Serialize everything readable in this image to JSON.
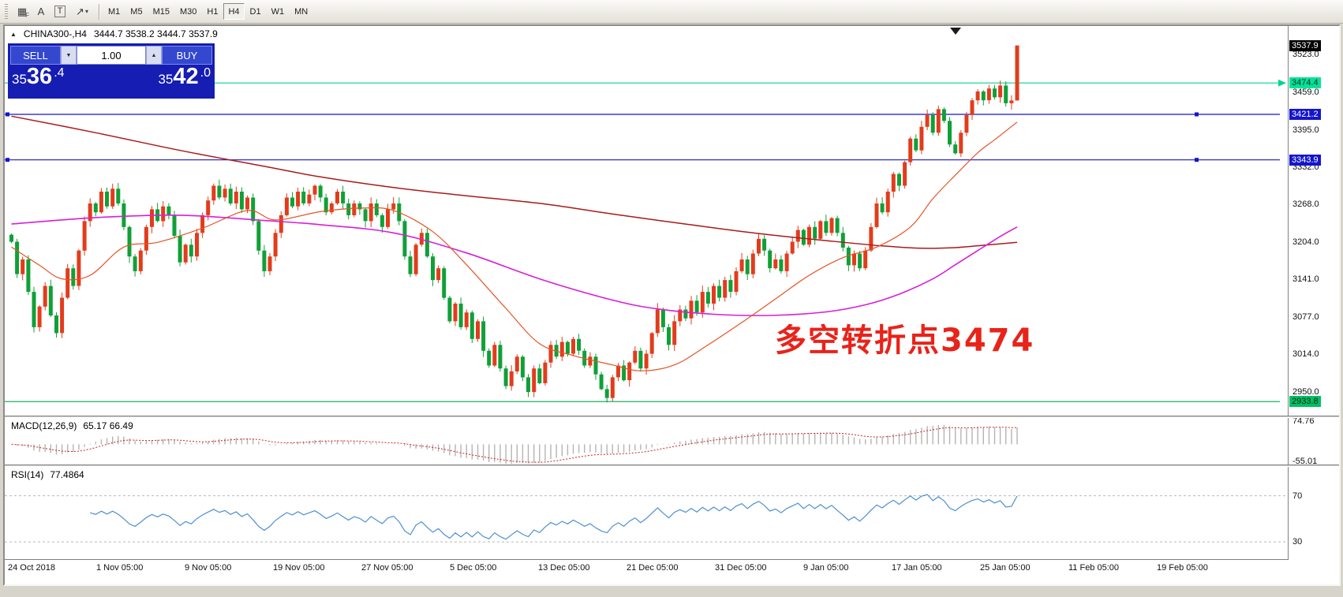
{
  "toolbar": {
    "tool_icons": [
      {
        "name": "grid-icon",
        "glyph": "▦",
        "badge": "F"
      },
      {
        "name": "text-label-icon",
        "glyph": "A"
      },
      {
        "name": "text-tool-icon",
        "glyph": "T"
      },
      {
        "name": "shapes-tool-icon",
        "glyph": "↗"
      }
    ],
    "dropdown_caret": "▾",
    "timeframes": [
      {
        "label": "M1",
        "active": false
      },
      {
        "label": "M5",
        "active": false
      },
      {
        "label": "M15",
        "active": false
      },
      {
        "label": "M30",
        "active": false
      },
      {
        "label": "H1",
        "active": false
      },
      {
        "label": "H4",
        "active": true
      },
      {
        "label": "D1",
        "active": false
      },
      {
        "label": "W1",
        "active": false
      },
      {
        "label": "MN",
        "active": false
      }
    ]
  },
  "chart": {
    "symbol_header": {
      "collapse_icon": "▲",
      "title": "CHINA300-,H4",
      "ohlc": "3444.7 3538.2 3444.7 3537.9"
    },
    "trade_panel": {
      "sell_label": "SELL",
      "buy_label": "BUY",
      "volume": "1.00",
      "sell_price": "3536.4",
      "buy_price": "3542.0",
      "volume_down_icon": "▼",
      "volume_up_icon": "▲"
    },
    "annotation": {
      "text": "多空转折点3474",
      "color": "#e8231a"
    },
    "current_price": {
      "value": 3537.9,
      "label": "3537.9",
      "bg": "#000000",
      "fg": "#ffffff"
    },
    "levels": [
      {
        "value": 3474.4,
        "label": "3474.4",
        "line_color": "#00d68f",
        "badge_bg": "#00e39b",
        "badge_fg": "#00301c",
        "arrow": true,
        "endpoints": false
      },
      {
        "value": 3421.2,
        "label": "3421.2",
        "line_color": "#1515cd",
        "badge_bg": "#1515cd",
        "badge_fg": "#ffffff",
        "arrow": false,
        "endpoints": true
      },
      {
        "value": 3343.9,
        "label": "3343.9",
        "line_color": "#1515cd",
        "badge_bg": "#1515cd",
        "badge_fg": "#ffffff",
        "arrow": false,
        "endpoints": true
      },
      {
        "value": 2933.8,
        "label": "2933.8",
        "line_color": "#00a651",
        "badge_bg": "#00bf63",
        "badge_fg": "#002a14",
        "arrow": false,
        "endpoints": false
      }
    ],
    "axis_ticks": [
      "3523.0",
      "3459.0",
      "3395.0",
      "3332.0",
      "3268.0",
      "3204.0",
      "3141.0",
      "3077.0",
      "3014.0",
      "2950.0"
    ],
    "price_range": {
      "max": 3571,
      "min": 2910
    }
  },
  "chart_data": {
    "type": "candlestick",
    "symbol": "CHINA300-",
    "timeframe": "H4",
    "up_color": "#e23c1c",
    "down_color": "#10a037",
    "closes": [
      3205,
      3150,
      3175,
      3120,
      3060,
      3095,
      3130,
      3080,
      3050,
      3110,
      3160,
      3130,
      3190,
      3240,
      3270,
      3255,
      3290,
      3265,
      3295,
      3270,
      3230,
      3180,
      3155,
      3190,
      3230,
      3260,
      3240,
      3265,
      3250,
      3215,
      3170,
      3200,
      3180,
      3220,
      3250,
      3275,
      3300,
      3280,
      3295,
      3270,
      3290,
      3260,
      3280,
      3240,
      3190,
      3155,
      3180,
      3220,
      3250,
      3280,
      3265,
      3290,
      3270,
      3285,
      3300,
      3280,
      3255,
      3270,
      3290,
      3270,
      3250,
      3270,
      3260,
      3240,
      3270,
      3250,
      3230,
      3260,
      3270,
      3240,
      3180,
      3150,
      3200,
      3220,
      3180,
      3140,
      3160,
      3110,
      3070,
      3100,
      3060,
      3085,
      3040,
      3070,
      3020,
      2995,
      3030,
      2990,
      2960,
      2985,
      3010,
      2975,
      2950,
      2990,
      2965,
      3000,
      3030,
      3010,
      3035,
      3015,
      3040,
      3020,
      2995,
      3010,
      2980,
      2955,
      2940,
      2975,
      2995,
      2970,
      3000,
      3020,
      2990,
      3015,
      3050,
      3090,
      3060,
      3030,
      3070,
      3090,
      3075,
      3105,
      3085,
      3120,
      3100,
      3130,
      3110,
      3140,
      3120,
      3155,
      3175,
      3150,
      3185,
      3210,
      3190,
      3160,
      3175,
      3155,
      3185,
      3205,
      3225,
      3200,
      3230,
      3210,
      3240,
      3220,
      3245,
      3220,
      3195,
      3165,
      3185,
      3160,
      3190,
      3230,
      3270,
      3255,
      3290,
      3320,
      3300,
      3340,
      3380,
      3360,
      3400,
      3420,
      3390,
      3430,
      3410,
      3370,
      3355,
      3390,
      3420,
      3445,
      3460,
      3445,
      3465,
      3450,
      3470,
      3440,
      3444.7,
      3537.9
    ],
    "last_candle": {
      "o": 3444.7,
      "h": 3538.2,
      "l": 3444.7,
      "c": 3537.9
    },
    "ma_slow": {
      "color": "#aa1a1a",
      "width": 1.5,
      "points": [
        [
          0,
          3418
        ],
        [
          15,
          3390
        ],
        [
          30,
          3360
        ],
        [
          45,
          3333
        ],
        [
          55,
          3315
        ],
        [
          68,
          3297
        ],
        [
          80,
          3284
        ],
        [
          95,
          3269
        ],
        [
          107,
          3252
        ],
        [
          120,
          3235
        ],
        [
          133,
          3219
        ],
        [
          146,
          3206
        ],
        [
          155,
          3198
        ],
        [
          162,
          3194
        ],
        [
          168,
          3195
        ],
        [
          173,
          3199
        ],
        [
          179,
          3204
        ]
      ]
    },
    "ma_mid": {
      "color": "#d81ed8",
      "width": 1.6,
      "points": [
        [
          0,
          3235
        ],
        [
          15,
          3246
        ],
        [
          30,
          3250
        ],
        [
          45,
          3241
        ],
        [
          55,
          3234
        ],
        [
          68,
          3220
        ],
        [
          81,
          3186
        ],
        [
          94,
          3142
        ],
        [
          107,
          3106
        ],
        [
          115,
          3091
        ],
        [
          125,
          3082
        ],
        [
          135,
          3080
        ],
        [
          145,
          3086
        ],
        [
          152,
          3098
        ],
        [
          158,
          3116
        ],
        [
          164,
          3142
        ],
        [
          168,
          3166
        ],
        [
          172,
          3190
        ],
        [
          176,
          3214
        ],
        [
          179,
          3230
        ]
      ]
    },
    "ma_fast": {
      "color": "#e55426",
      "width": 1.2,
      "points": [
        [
          0,
          3196
        ],
        [
          5,
          3165
        ],
        [
          9,
          3142
        ],
        [
          14,
          3148
        ],
        [
          20,
          3196
        ],
        [
          26,
          3204
        ],
        [
          34,
          3228
        ],
        [
          42,
          3258
        ],
        [
          47,
          3242
        ],
        [
          55,
          3256
        ],
        [
          62,
          3262
        ],
        [
          68,
          3258
        ],
        [
          75,
          3222
        ],
        [
          81,
          3166
        ],
        [
          88,
          3092
        ],
        [
          94,
          3032
        ],
        [
          100,
          3012
        ],
        [
          107,
          2996
        ],
        [
          112,
          2986
        ],
        [
          118,
          2996
        ],
        [
          124,
          3030
        ],
        [
          130,
          3068
        ],
        [
          136,
          3108
        ],
        [
          142,
          3148
        ],
        [
          148,
          3178
        ],
        [
          154,
          3196
        ],
        [
          160,
          3230
        ],
        [
          164,
          3278
        ],
        [
          168,
          3318
        ],
        [
          172,
          3356
        ],
        [
          175,
          3378
        ],
        [
          179,
          3408
        ]
      ]
    }
  },
  "macd": {
    "label": "MACD(12,26,9)",
    "values": "65.17 66.49",
    "fast": 12,
    "slow": 26,
    "signal_period": 9,
    "range": {
      "max": 85,
      "min": -65
    },
    "axis": [
      {
        "v": 74.76,
        "label": "74.76"
      },
      {
        "v": -55.01,
        "label": "-55.01"
      }
    ]
  },
  "rsi": {
    "label": "RSI(14)",
    "value": "77.4864",
    "period": 14,
    "levels": [
      {
        "v": 70,
        "label": "70"
      },
      {
        "v": 30,
        "label": "30"
      }
    ],
    "range": {
      "max": 95,
      "min": 15
    }
  },
  "dates": [
    "24 Oct 2018",
    "1 Nov 05:00",
    "9 Nov 05:00",
    "19 Nov 05:00",
    "27 Nov 05:00",
    "5 Dec 05:00",
    "13 Dec 05:00",
    "21 Dec 05:00",
    "31 Dec 05:00",
    "9 Jan 05:00",
    "17 Jan 05:00",
    "25 Jan 05:00",
    "11 Feb 05:00",
    "19 Feb 05:00"
  ]
}
